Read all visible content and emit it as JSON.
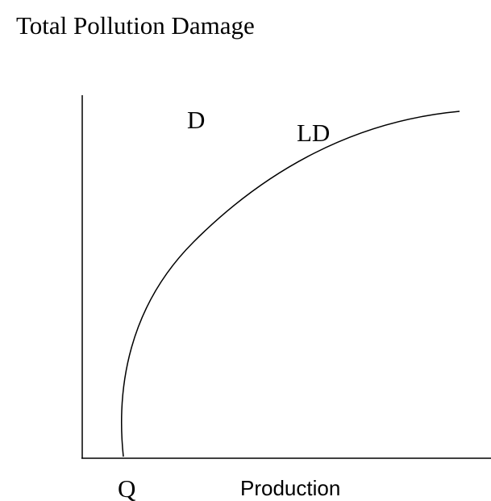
{
  "title": "Total Pollution Damage",
  "curve": {
    "label": "LD"
  },
  "point_label": "D",
  "x_axis": {
    "point_label": "Q",
    "label": "Production"
  }
}
